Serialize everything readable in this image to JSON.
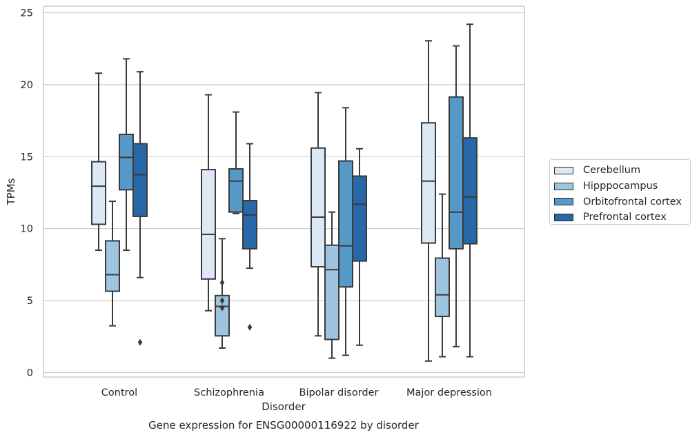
{
  "chart_data": {
    "type": "box",
    "title": "Gene expression for ENSG00000116922 by disorder",
    "xlabel": "Disorder",
    "ylabel": "TPMs",
    "ylim": [
      -0.3,
      25.5
    ],
    "yticks": [
      0,
      5,
      10,
      15,
      20,
      25
    ],
    "grid": true,
    "legend_position": "right",
    "categories": [
      "Control",
      "Schizophrenia",
      "Bipolar disorder",
      "Major depression"
    ],
    "series": [
      {
        "name": "Cerebellum",
        "color": "#dbe8f5",
        "boxes": [
          {
            "whislo": 8.5,
            "q1": 10.3,
            "med": 12.95,
            "q3": 14.65,
            "whishi": 20.8,
            "fliers": []
          },
          {
            "whislo": 4.3,
            "q1": 6.5,
            "med": 9.6,
            "q3": 14.1,
            "whishi": 19.3,
            "fliers": []
          },
          {
            "whislo": 2.55,
            "q1": 7.35,
            "med": 10.8,
            "q3": 15.6,
            "whishi": 19.45,
            "fliers": []
          },
          {
            "whislo": 0.8,
            "q1": 9.0,
            "med": 13.3,
            "q3": 17.35,
            "whishi": 23.05,
            "fliers": []
          }
        ]
      },
      {
        "name": "Hipppocampus",
        "color": "#9ec5e0",
        "boxes": [
          {
            "whislo": 3.25,
            "q1": 5.65,
            "med": 6.8,
            "q3": 9.15,
            "whishi": 11.9,
            "fliers": []
          },
          {
            "whislo": 1.7,
            "q1": 2.55,
            "med": 4.6,
            "q3": 5.35,
            "whishi": 9.3,
            "fliers": [
              4.5,
              5.0,
              6.25
            ]
          },
          {
            "whislo": 1.0,
            "q1": 2.3,
            "med": 7.15,
            "q3": 8.85,
            "whishi": 11.15,
            "fliers": []
          },
          {
            "whislo": 1.1,
            "q1": 3.9,
            "med": 5.4,
            "q3": 7.95,
            "whishi": 12.4,
            "fliers": []
          }
        ]
      },
      {
        "name": "Orbitofrontal cortex",
        "color": "#5698c8",
        "boxes": [
          {
            "whislo": 8.5,
            "q1": 12.7,
            "med": 14.95,
            "q3": 16.55,
            "whishi": 21.8,
            "fliers": []
          },
          {
            "whislo": 11.05,
            "q1": 11.15,
            "med": 13.3,
            "q3": 14.15,
            "whishi": 18.1,
            "fliers": []
          },
          {
            "whislo": 1.2,
            "q1": 5.95,
            "med": 8.8,
            "q3": 14.7,
            "whishi": 18.4,
            "fliers": []
          },
          {
            "whislo": 1.8,
            "q1": 8.6,
            "med": 11.15,
            "q3": 19.15,
            "whishi": 22.7,
            "fliers": []
          }
        ]
      },
      {
        "name": "Prefrontal cortex",
        "color": "#2867a8",
        "boxes": [
          {
            "whislo": 6.6,
            "q1": 10.85,
            "med": 13.75,
            "q3": 15.9,
            "whishi": 20.9,
            "fliers": [
              2.1
            ]
          },
          {
            "whislo": 7.25,
            "q1": 8.6,
            "med": 10.95,
            "q3": 11.95,
            "whishi": 15.9,
            "fliers": [
              3.15
            ]
          },
          {
            "whislo": 1.9,
            "q1": 7.75,
            "med": 11.7,
            "q3": 13.65,
            "whishi": 15.55,
            "fliers": []
          },
          {
            "whislo": 1.1,
            "q1": 8.95,
            "med": 12.2,
            "q3": 16.3,
            "whishi": 24.2,
            "fliers": []
          }
        ]
      }
    ]
  }
}
